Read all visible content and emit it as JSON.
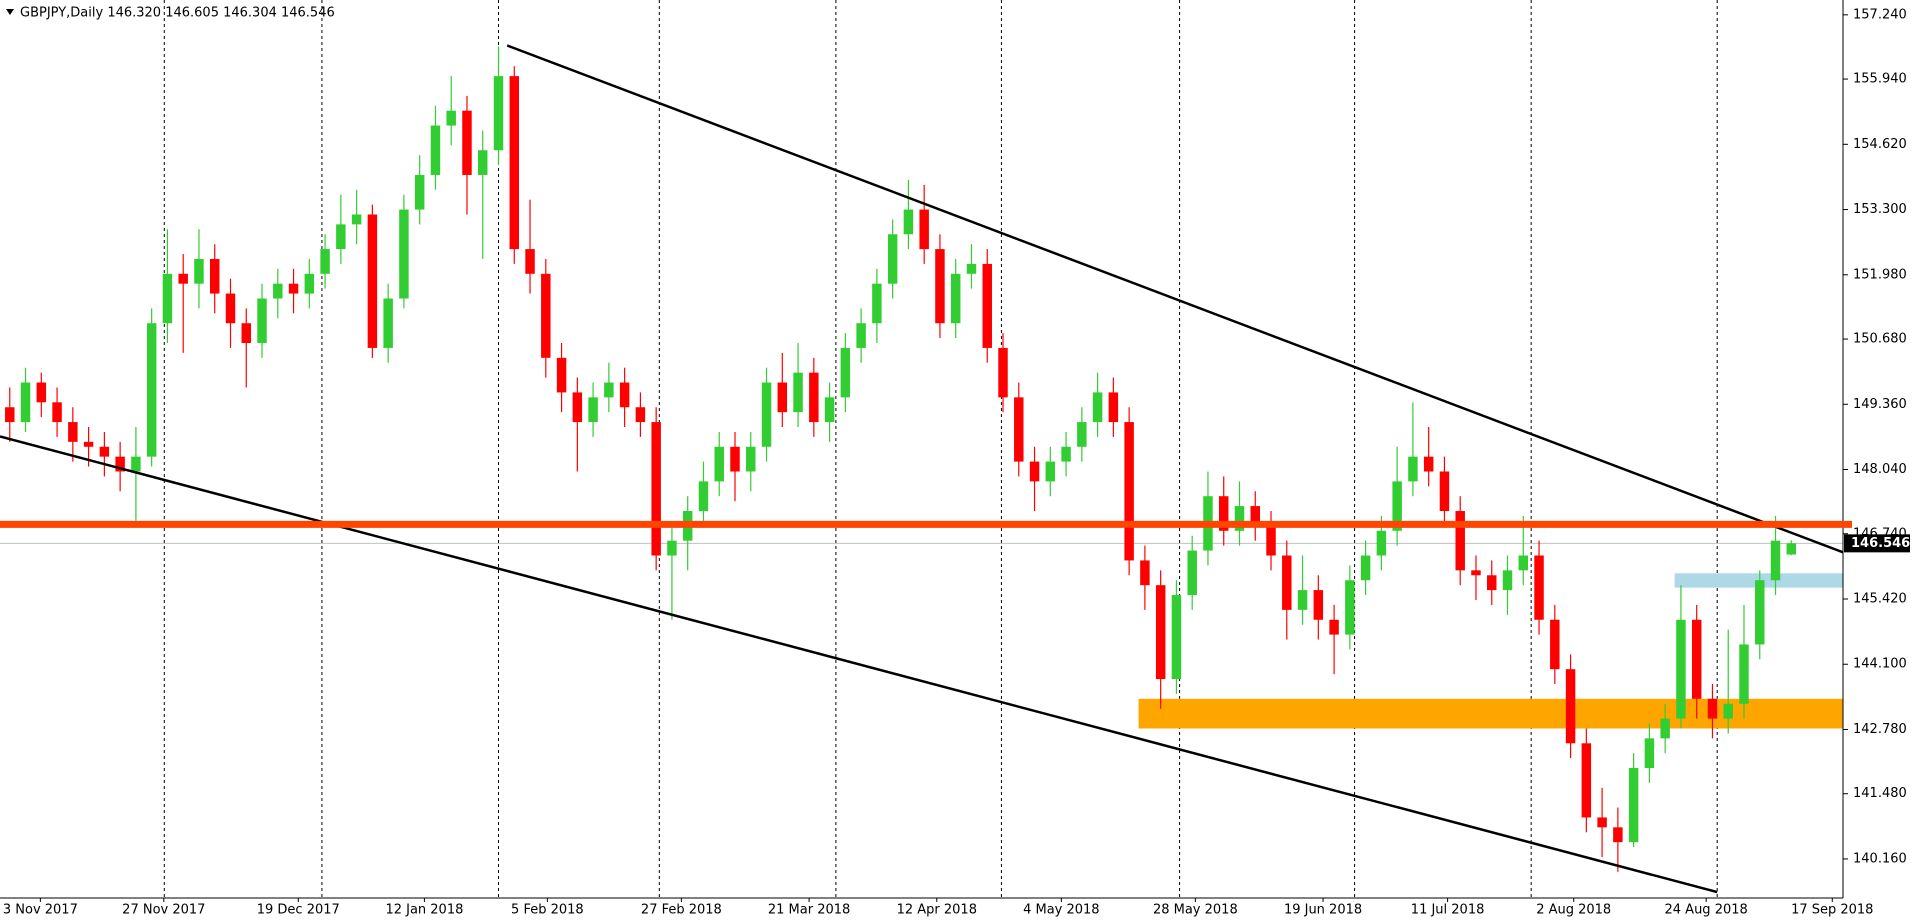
{
  "chart_data": {
    "type": "candlestick",
    "title": "GBPJPY,Daily  146.320 146.605 146.304 146.546",
    "up_color": "#32cd32",
    "down_color": "#ff0000",
    "ohlc": [
      [
        149.3,
        149.7,
        148.6,
        149.0
      ],
      [
        149.0,
        150.1,
        148.8,
        149.8
      ],
      [
        149.8,
        150.0,
        149.1,
        149.4
      ],
      [
        149.4,
        149.7,
        148.7,
        149.0
      ],
      [
        149.0,
        149.3,
        148.2,
        148.6
      ],
      [
        148.6,
        148.9,
        148.1,
        148.5
      ],
      [
        148.5,
        148.8,
        147.9,
        148.3
      ],
      [
        148.3,
        148.6,
        147.6,
        148.0
      ],
      [
        148.0,
        148.9,
        147.0,
        148.3
      ],
      [
        148.3,
        151.3,
        148.1,
        151.0
      ],
      [
        151.0,
        152.9,
        150.6,
        152.0
      ],
      [
        152.0,
        152.4,
        150.4,
        151.8
      ],
      [
        151.8,
        152.9,
        151.3,
        152.3
      ],
      [
        152.3,
        152.6,
        151.2,
        151.6
      ],
      [
        151.6,
        151.9,
        150.5,
        151.0
      ],
      [
        151.0,
        151.3,
        149.7,
        150.6
      ],
      [
        150.6,
        151.8,
        150.3,
        151.5
      ],
      [
        151.5,
        152.1,
        151.1,
        151.8
      ],
      [
        151.8,
        152.1,
        151.2,
        151.6
      ],
      [
        151.6,
        152.3,
        151.3,
        152.0
      ],
      [
        152.0,
        152.8,
        151.7,
        152.5
      ],
      [
        152.5,
        153.6,
        152.2,
        153.0
      ],
      [
        153.0,
        153.7,
        152.6,
        153.2
      ],
      [
        153.2,
        153.4,
        150.3,
        150.5
      ],
      [
        150.5,
        151.8,
        150.2,
        151.5
      ],
      [
        151.5,
        153.6,
        151.3,
        153.3
      ],
      [
        153.3,
        154.4,
        153.0,
        154.0
      ],
      [
        154.0,
        155.4,
        153.7,
        155.0
      ],
      [
        155.0,
        156.0,
        154.6,
        155.3
      ],
      [
        155.3,
        155.6,
        153.2,
        154.0
      ],
      [
        154.0,
        154.9,
        152.3,
        154.5
      ],
      [
        154.5,
        156.6,
        154.2,
        156.0
      ],
      [
        156.0,
        156.2,
        152.2,
        152.5
      ],
      [
        152.5,
        153.5,
        151.6,
        152.0
      ],
      [
        152.0,
        152.3,
        149.9,
        150.3
      ],
      [
        150.3,
        150.6,
        149.2,
        149.6
      ],
      [
        149.6,
        149.9,
        148.0,
        149.0
      ],
      [
        149.0,
        149.8,
        148.7,
        149.5
      ],
      [
        149.5,
        150.2,
        149.2,
        149.8
      ],
      [
        149.8,
        150.1,
        148.9,
        149.3
      ],
      [
        149.3,
        149.6,
        148.7,
        149.0
      ],
      [
        149.0,
        149.3,
        146.0,
        146.3
      ],
      [
        146.3,
        146.9,
        145.0,
        146.6
      ],
      [
        146.6,
        147.5,
        146.0,
        147.2
      ],
      [
        147.2,
        148.2,
        146.9,
        147.8
      ],
      [
        147.8,
        148.8,
        147.5,
        148.5
      ],
      [
        148.5,
        148.8,
        147.4,
        148.0
      ],
      [
        148.0,
        148.8,
        147.6,
        148.5
      ],
      [
        148.5,
        150.1,
        148.2,
        149.8
      ],
      [
        149.8,
        150.4,
        148.9,
        149.2
      ],
      [
        149.2,
        150.6,
        148.9,
        150.0
      ],
      [
        150.0,
        150.3,
        148.7,
        149.0
      ],
      [
        149.0,
        149.8,
        148.6,
        149.5
      ],
      [
        149.5,
        150.8,
        149.2,
        150.5
      ],
      [
        150.5,
        151.3,
        150.2,
        151.0
      ],
      [
        151.0,
        152.1,
        150.6,
        151.8
      ],
      [
        151.8,
        153.1,
        151.5,
        152.8
      ],
      [
        152.8,
        153.9,
        152.5,
        153.3
      ],
      [
        153.3,
        153.8,
        152.2,
        152.5
      ],
      [
        152.5,
        152.8,
        150.7,
        151.0
      ],
      [
        151.0,
        152.3,
        150.7,
        152.0
      ],
      [
        152.0,
        152.6,
        151.7,
        152.2
      ],
      [
        152.2,
        152.5,
        150.2,
        150.5
      ],
      [
        150.5,
        150.8,
        149.2,
        149.5
      ],
      [
        149.5,
        149.8,
        147.9,
        148.2
      ],
      [
        148.2,
        148.5,
        147.2,
        147.8
      ],
      [
        147.8,
        148.5,
        147.5,
        148.2
      ],
      [
        148.2,
        148.8,
        147.9,
        148.5
      ],
      [
        148.5,
        149.3,
        148.2,
        149.0
      ],
      [
        149.0,
        150.0,
        148.7,
        149.6
      ],
      [
        149.6,
        149.9,
        148.7,
        149.0
      ],
      [
        149.0,
        149.3,
        145.9,
        146.2
      ],
      [
        146.2,
        146.5,
        145.2,
        145.7
      ],
      [
        145.7,
        146.0,
        143.2,
        143.8
      ],
      [
        143.8,
        145.8,
        143.5,
        145.5
      ],
      [
        145.5,
        146.7,
        145.2,
        146.4
      ],
      [
        146.4,
        148.0,
        146.1,
        147.5
      ],
      [
        147.5,
        147.9,
        146.5,
        146.8
      ],
      [
        146.8,
        147.8,
        146.5,
        147.3
      ],
      [
        147.3,
        147.6,
        146.6,
        146.9
      ],
      [
        146.9,
        147.2,
        146.0,
        146.3
      ],
      [
        146.3,
        146.6,
        144.6,
        145.2
      ],
      [
        145.2,
        146.3,
        144.9,
        145.6
      ],
      [
        145.6,
        145.9,
        144.6,
        145.0
      ],
      [
        145.0,
        145.3,
        143.9,
        144.7
      ],
      [
        144.7,
        146.1,
        144.4,
        145.8
      ],
      [
        145.8,
        146.6,
        145.5,
        146.3
      ],
      [
        146.3,
        147.1,
        146.0,
        146.8
      ],
      [
        146.8,
        148.5,
        146.5,
        147.8
      ],
      [
        147.8,
        149.4,
        147.5,
        148.3
      ],
      [
        148.3,
        148.9,
        147.7,
        148.0
      ],
      [
        148.0,
        148.3,
        146.9,
        147.2
      ],
      [
        147.2,
        147.5,
        145.7,
        146.0
      ],
      [
        146.0,
        146.3,
        145.4,
        145.9
      ],
      [
        145.9,
        146.2,
        145.3,
        145.6
      ],
      [
        145.6,
        146.3,
        145.1,
        146.0
      ],
      [
        146.0,
        147.1,
        145.7,
        146.3
      ],
      [
        146.3,
        146.6,
        144.7,
        145.0
      ],
      [
        145.0,
        145.3,
        143.7,
        144.0
      ],
      [
        144.0,
        144.3,
        142.2,
        142.5
      ],
      [
        142.5,
        142.8,
        140.7,
        141.0
      ],
      [
        141.0,
        141.6,
        140.2,
        140.8
      ],
      [
        140.8,
        141.2,
        139.9,
        140.5
      ],
      [
        140.5,
        142.3,
        140.4,
        142.0
      ],
      [
        142.0,
        142.9,
        141.7,
        142.6
      ],
      [
        142.6,
        143.3,
        142.3,
        143.0
      ],
      [
        143.0,
        145.7,
        142.8,
        145.0
      ],
      [
        145.0,
        145.3,
        143.0,
        143.4
      ],
      [
        143.4,
        143.7,
        142.6,
        143.0
      ],
      [
        143.0,
        144.8,
        142.7,
        143.3
      ],
      [
        143.3,
        145.3,
        143.0,
        144.5
      ],
      [
        144.5,
        146.0,
        144.2,
        145.8
      ],
      [
        145.8,
        147.1,
        145.5,
        146.6
      ],
      [
        146.32,
        146.605,
        146.304,
        146.546
      ]
    ],
    "xlim": [
      -0.62,
      116.28
    ],
    "ylim": [
      139.37,
      157.54
    ],
    "yticks": [
      {
        "value": 157.24,
        "label": "157.240"
      },
      {
        "value": 155.94,
        "label": "155.940"
      },
      {
        "value": 154.62,
        "label": "154.620"
      },
      {
        "value": 153.3,
        "label": "153.300"
      },
      {
        "value": 151.98,
        "label": "151.980"
      },
      {
        "value": 150.68,
        "label": "150.680"
      },
      {
        "value": 149.36,
        "label": "149.360"
      },
      {
        "value": 148.04,
        "label": "148.040"
      },
      {
        "value": 146.74,
        "label": "146.740"
      },
      {
        "value": 145.42,
        "label": "145.420"
      },
      {
        "value": 144.1,
        "label": "144.100"
      },
      {
        "value": 142.78,
        "label": "142.780"
      },
      {
        "value": 141.48,
        "label": "141.480"
      },
      {
        "value": 140.16,
        "label": "140.160"
      }
    ],
    "xticks": [
      {
        "value": 1.94,
        "label": "3 Nov 2017"
      },
      {
        "value": 9.77,
        "label": "27 Nov 2017"
      },
      {
        "value": 18.3,
        "label": "19 Dec 2017"
      },
      {
        "value": 26.3,
        "label": "12 Jan 2018"
      },
      {
        "value": 34.1,
        "label": "5 Feb 2018"
      },
      {
        "value": 42.6,
        "label": "27 Feb 2018"
      },
      {
        "value": 50.7,
        "label": "21 Mar 2018"
      },
      {
        "value": 58.8,
        "label": "12 Apr 2018"
      },
      {
        "value": 66.7,
        "label": "4 May 2018"
      },
      {
        "value": 75.2,
        "label": "28 May 2018"
      },
      {
        "value": 83.3,
        "label": "19 Jun 2018"
      },
      {
        "value": 91.2,
        "label": "11 Jul 2018"
      },
      {
        "value": 99.2,
        "label": "2 Aug 2018"
      },
      {
        "value": 107.6,
        "label": "24 Aug 2018"
      },
      {
        "value": 115.6,
        "label": "17 Sep 2018"
      }
    ],
    "x_grid": [
      9.8,
      19.8,
      31.0,
      41.2,
      52.4,
      62.9,
      74.2,
      85.3,
      96.5,
      108.3
    ],
    "last_price": {
      "value": 146.546,
      "label": "146.546"
    },
    "levels": [
      {
        "value": 146.93,
        "color": "#ff4500"
      }
    ],
    "zones": [
      {
        "from": 71.6,
        "to": 116.28,
        "range": [
          142.8,
          143.4
        ],
        "color": "#ffa500"
      },
      {
        "from": 105.6,
        "to": 116.28,
        "range": [
          145.65,
          145.94
        ],
        "color": "#add8e6"
      }
    ],
    "trendlines": [
      {
        "x": [
          31.55,
          116.4
        ],
        "y": [
          156.62,
          146.35
        ]
      },
      {
        "x": [
          -0.62,
          108.3
        ],
        "y": [
          148.71,
          139.49
        ]
      }
    ]
  }
}
